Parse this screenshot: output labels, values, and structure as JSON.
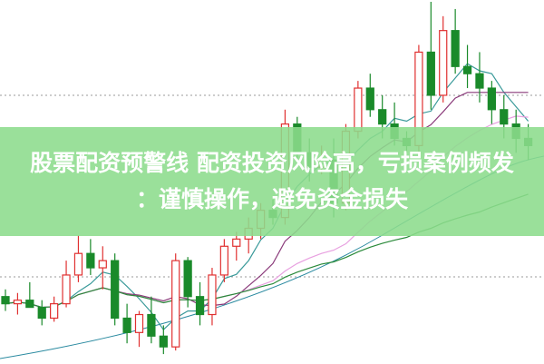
{
  "headline": {
    "line1": "股票配资预警线 配资投资风险高，亏损案例频发",
    "line2": "：谨慎操作，避免资金损失"
  },
  "chart_data": {
    "type": "candlestick",
    "title": "",
    "xlabel": "",
    "ylabel": "",
    "ylim": [
      0,
      100
    ],
    "grid": "dotted horizontal reference lines",
    "colors": {
      "up": "#e03030",
      "down": "#1a8a2a",
      "ma5": "#3a9a9a",
      "ma10": "#8a3a7a",
      "ma20": "#e8a0e0",
      "ma60": "#2a8a3a",
      "ma120": "#2a8aa0"
    },
    "candles": [
      [
        18,
        20,
        14,
        16
      ],
      [
        16,
        19,
        13,
        17
      ],
      [
        17,
        22,
        15,
        15
      ],
      [
        15,
        17,
        10,
        12
      ],
      [
        12,
        18,
        11,
        16
      ],
      [
        16,
        28,
        15,
        24
      ],
      [
        24,
        35,
        22,
        30
      ],
      [
        30,
        34,
        24,
        26
      ],
      [
        26,
        32,
        20,
        28
      ],
      [
        28,
        30,
        10,
        12
      ],
      [
        12,
        16,
        5,
        8
      ],
      [
        8,
        14,
        4,
        13
      ],
      [
        13,
        18,
        5,
        7
      ],
      [
        7,
        10,
        2,
        4
      ],
      [
        4,
        30,
        3,
        28
      ],
      [
        28,
        29,
        15,
        18
      ],
      [
        18,
        22,
        10,
        13
      ],
      [
        13,
        26,
        10,
        24
      ],
      [
        24,
        34,
        22,
        32
      ],
      [
        32,
        36,
        28,
        34
      ],
      [
        34,
        40,
        30,
        37
      ],
      [
        37,
        44,
        34,
        42
      ],
      [
        42,
        45,
        38,
        40
      ],
      [
        40,
        70,
        38,
        66
      ],
      [
        66,
        68,
        55,
        58
      ],
      [
        58,
        62,
        50,
        54
      ],
      [
        54,
        60,
        52,
        56
      ],
      [
        56,
        62,
        40,
        44
      ],
      [
        44,
        66,
        42,
        64
      ],
      [
        64,
        78,
        62,
        76
      ],
      [
        76,
        80,
        68,
        70
      ],
      [
        70,
        74,
        62,
        66
      ],
      [
        66,
        72,
        60,
        62
      ],
      [
        62,
        64,
        58,
        60
      ],
      [
        60,
        88,
        58,
        86
      ],
      [
        86,
        100,
        70,
        74
      ],
      [
        74,
        96,
        72,
        92
      ],
      [
        92,
        98,
        80,
        82
      ],
      [
        82,
        88,
        76,
        80
      ],
      [
        80,
        86,
        72,
        76
      ],
      [
        76,
        78,
        66,
        70
      ],
      [
        70,
        74,
        62,
        66
      ],
      [
        66,
        70,
        58,
        62
      ],
      [
        62,
        66,
        56,
        60
      ]
    ],
    "candle_fields": [
      "open",
      "high",
      "low",
      "close"
    ]
  }
}
